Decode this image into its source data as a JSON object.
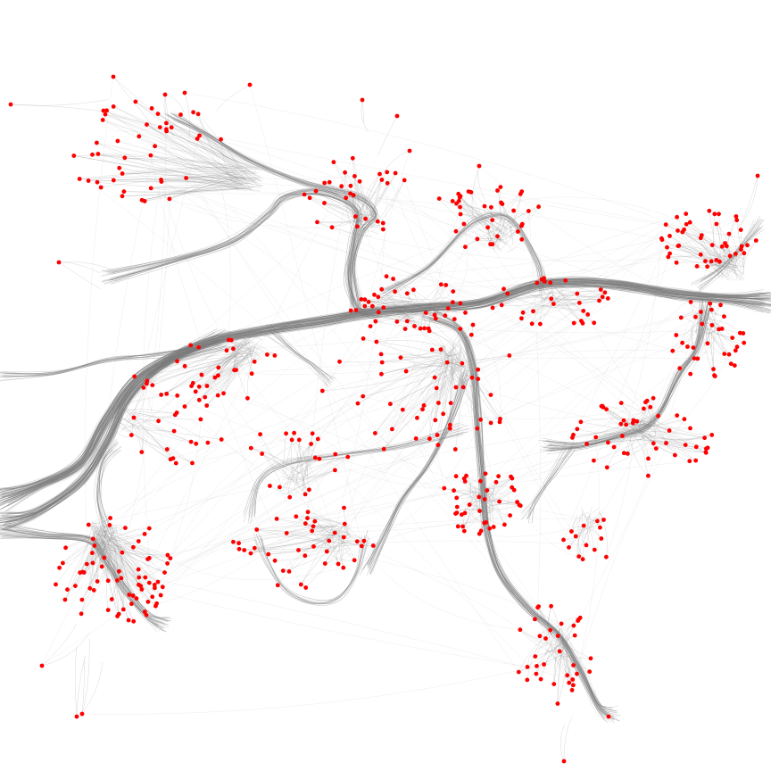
{
  "diagram": {
    "type": "edge-bundled network graph",
    "background_color": "#ffffff",
    "edge_color": "#7a7a7a",
    "node_color": "#ff0000",
    "labels_visible": false
  }
}
